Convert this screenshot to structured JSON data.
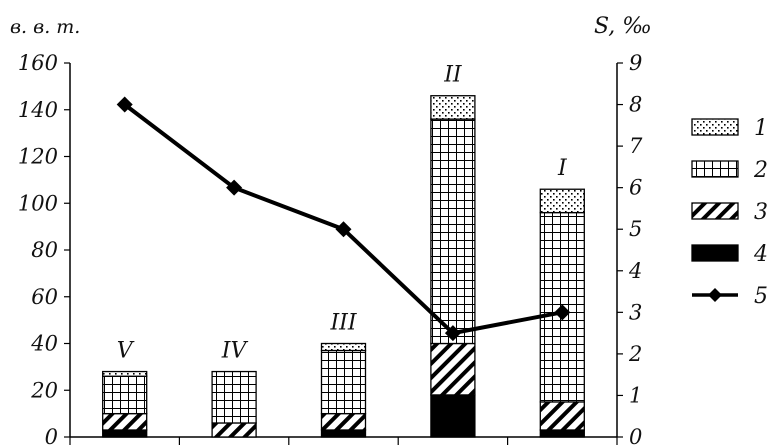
{
  "chart_data": {
    "type": "bar",
    "stacked": true,
    "categories": [
      "V",
      "IV",
      "III",
      "II",
      "I"
    ],
    "y_left": {
      "label": "в. в. т.",
      "range": [
        0,
        160
      ],
      "ticks": [
        "0",
        "20",
        "40",
        "60",
        "80",
        "100",
        "120",
        "140",
        "160"
      ]
    },
    "y_right": {
      "label": "S, ‰",
      "range": [
        0,
        9
      ],
      "ticks": [
        "0",
        "1",
        "2",
        "3",
        "4",
        "5",
        "6",
        "7",
        "8",
        "9"
      ]
    },
    "series": [
      {
        "name": "4",
        "pattern": "solid",
        "values": [
          3,
          0,
          3,
          18,
          3
        ]
      },
      {
        "name": "3",
        "pattern": "diagonal",
        "values": [
          7,
          6,
          7,
          22,
          12
        ]
      },
      {
        "name": "2",
        "pattern": "grid",
        "values": [
          16,
          22,
          27,
          96,
          81
        ]
      },
      {
        "name": "1",
        "pattern": "dots",
        "values": [
          2,
          0,
          3,
          10,
          10
        ]
      }
    ],
    "line_series": {
      "name": "5",
      "axis": "right",
      "values": [
        8.0,
        6.0,
        5.0,
        2.5,
        3.0
      ]
    },
    "legend": {
      "position": "right",
      "order": [
        "1",
        "2",
        "3",
        "4",
        "5"
      ]
    },
    "grid": false
  }
}
